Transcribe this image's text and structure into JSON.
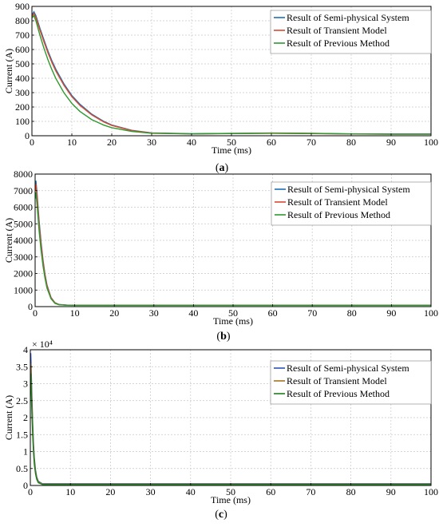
{
  "colors": {
    "semi_physical": "#1f6fb5",
    "transient": "#d84a2e",
    "previous": "#2e9a2e",
    "semi_physical_c": "#2a54b8",
    "transient_c": "#a4731a",
    "previous_c": "#1e7e1e"
  },
  "chart_data": [
    {
      "type": "line",
      "caption": "(a)",
      "caption_letter": "a",
      "xlabel": "Time (ms)",
      "ylabel": "Current (A)",
      "xlim": [
        0,
        100
      ],
      "ylim": [
        0,
        900
      ],
      "xticks": [
        0,
        10,
        20,
        30,
        40,
        50,
        60,
        70,
        80,
        90,
        100
      ],
      "yticks": [
        0,
        100,
        200,
        300,
        400,
        500,
        600,
        700,
        800,
        900
      ],
      "ytick_labels": [
        "0",
        "100",
        "200",
        "300",
        "400",
        "500",
        "600",
        "700",
        "800",
        "900"
      ],
      "exponent_label": "",
      "grid": true,
      "legend_position": "top-right",
      "series": [
        {
          "name": "Result of Semi-physical System",
          "color_key": "semi_physical",
          "x": [
            0,
            0.5,
            1,
            2,
            3,
            4,
            5,
            6,
            8,
            10,
            12,
            15,
            18,
            20,
            25,
            30,
            40,
            50,
            60,
            70,
            80,
            90,
            100
          ],
          "y": [
            840,
            862,
            835,
            748,
            668,
            590,
            522,
            462,
            362,
            280,
            220,
            150,
            100,
            75,
            38,
            20,
            14,
            16,
            18,
            16,
            13,
            12,
            12
          ]
        },
        {
          "name": "Result of Transient Model",
          "color_key": "transient",
          "x": [
            0,
            0.5,
            1,
            2,
            3,
            4,
            5,
            6,
            8,
            10,
            12,
            15,
            18,
            20,
            25,
            30,
            40,
            50,
            60,
            70,
            80,
            90,
            100
          ],
          "y": [
            830,
            850,
            822,
            735,
            655,
            578,
            510,
            450,
            352,
            272,
            212,
            145,
            96,
            72,
            36,
            19,
            13,
            15,
            17,
            15,
            12,
            11,
            11
          ]
        },
        {
          "name": "Result of Previous Method",
          "color_key": "previous",
          "x": [
            0,
            0.5,
            1,
            2,
            3,
            4,
            5,
            6,
            8,
            10,
            12,
            15,
            18,
            20,
            25,
            30,
            40,
            50,
            60,
            70,
            80,
            90,
            100
          ],
          "y": [
            820,
            835,
            800,
            700,
            610,
            530,
            460,
            398,
            300,
            225,
            170,
            112,
            74,
            56,
            30,
            17,
            13,
            16,
            19,
            17,
            13,
            11,
            11
          ]
        }
      ]
    },
    {
      "type": "line",
      "caption": "(b)",
      "caption_letter": "b",
      "xlabel": "Time (ms)",
      "ylabel": "Current (A)",
      "xlim": [
        0,
        100
      ],
      "ylim": [
        0,
        8000
      ],
      "xticks": [
        0,
        10,
        20,
        30,
        40,
        50,
        60,
        70,
        80,
        90,
        100
      ],
      "yticks": [
        0,
        1000,
        2000,
        3000,
        4000,
        5000,
        6000,
        7000,
        8000
      ],
      "ytick_labels": [
        "0",
        "1000",
        "2000",
        "3000",
        "4000",
        "5000",
        "6000",
        "7000",
        "8000"
      ],
      "exponent_label": "",
      "grid": true,
      "legend_position": "top-right",
      "series": [
        {
          "name": "Result of Semi-physical System",
          "color_key": "semi_physical",
          "x": [
            0,
            0.2,
            0.5,
            1,
            1.5,
            2,
            2.5,
            3,
            4,
            5,
            6,
            8,
            10,
            20,
            50,
            100
          ],
          "y": [
            7200,
            7600,
            6800,
            5200,
            3900,
            2800,
            1950,
            1300,
            560,
            240,
            130,
            90,
            80,
            80,
            80,
            80
          ]
        },
        {
          "name": "Result of Transient Model",
          "color_key": "transient",
          "x": [
            0,
            0.2,
            0.5,
            1,
            1.5,
            2,
            2.5,
            3,
            4,
            5,
            6,
            8,
            10,
            20,
            50,
            100
          ],
          "y": [
            7000,
            7400,
            6600,
            5000,
            3750,
            2700,
            1880,
            1250,
            540,
            230,
            125,
            88,
            80,
            80,
            80,
            80
          ]
        },
        {
          "name": "Result of Previous Method",
          "color_key": "previous",
          "x": [
            0,
            0.2,
            0.5,
            1,
            1.5,
            2,
            2.5,
            3,
            4,
            5,
            6,
            8,
            10,
            20,
            50,
            100
          ],
          "y": [
            6500,
            6900,
            6100,
            4600,
            3400,
            2450,
            1700,
            1120,
            480,
            200,
            110,
            85,
            78,
            78,
            78,
            78
          ]
        }
      ]
    },
    {
      "type": "line",
      "caption": "(c)",
      "caption_letter": "c",
      "xlabel": "Time (ms)",
      "ylabel": "Current (A)",
      "xlim": [
        0,
        100
      ],
      "ylim": [
        0,
        4
      ],
      "xticks": [
        0,
        10,
        20,
        30,
        40,
        50,
        60,
        70,
        80,
        90,
        100
      ],
      "yticks": [
        0,
        0.5,
        1,
        1.5,
        2,
        2.5,
        3,
        3.5,
        4
      ],
      "ytick_labels": [
        "0",
        "0.5",
        "1",
        "1.5",
        "2",
        "2.5",
        "3",
        "3.5",
        "4"
      ],
      "exponent_label": "× 10⁴",
      "grid": true,
      "legend_position": "top-right",
      "series": [
        {
          "name": "Result of Semi-physical System",
          "color_key": "semi_physical_c",
          "x": [
            0,
            0.1,
            0.2,
            0.4,
            0.6,
            0.8,
            1,
            1.3,
            1.6,
            2,
            3,
            5,
            10,
            50,
            100
          ],
          "y": [
            3.6,
            3.9,
            3.5,
            2.6,
            1.8,
            1.2,
            0.8,
            0.45,
            0.25,
            0.12,
            0.05,
            0.05,
            0.05,
            0.05,
            0.05
          ]
        },
        {
          "name": "Result of Transient Model",
          "color_key": "transient_c",
          "x": [
            0,
            0.1,
            0.2,
            0.4,
            0.6,
            0.8,
            1,
            1.3,
            1.6,
            2,
            3,
            5,
            10,
            50,
            100
          ],
          "y": [
            3.3,
            3.6,
            3.2,
            2.4,
            1.65,
            1.1,
            0.72,
            0.4,
            0.22,
            0.1,
            0.04,
            0.04,
            0.04,
            0.04,
            0.04
          ]
        },
        {
          "name": "Result of Previous Method",
          "color_key": "previous_c",
          "x": [
            0,
            0.1,
            0.2,
            0.4,
            0.6,
            0.8,
            1,
            1.3,
            1.6,
            2,
            3,
            5,
            10,
            50,
            100
          ],
          "y": [
            3.0,
            3.3,
            2.9,
            2.1,
            1.45,
            0.95,
            0.62,
            0.34,
            0.18,
            0.08,
            0.03,
            0.03,
            0.03,
            0.03,
            0.03
          ]
        }
      ]
    }
  ]
}
